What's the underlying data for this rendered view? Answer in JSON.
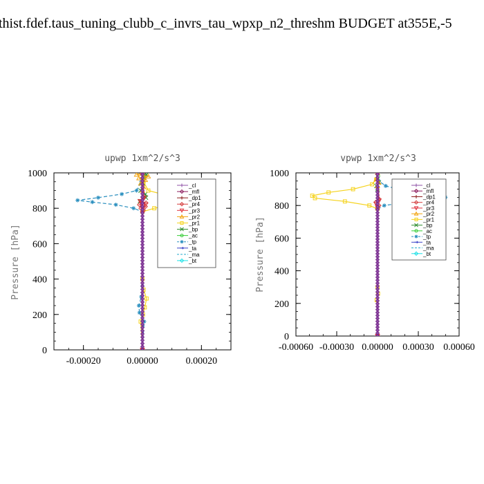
{
  "page_title": "thist.fdef.taus_tuning_clubb_c_invrs_tau_wpxp_n2_threshm  BUDGET at355E,-5",
  "chart_data": [
    {
      "type": "line",
      "title": "upwp   1xm^2/s^3",
      "ylabel": "Pressure [hPa]",
      "xlabel": "",
      "xlim": [
        -0.0003,
        0.0003
      ],
      "ylim": [
        1000,
        0
      ],
      "xticks": [
        -0.0002,
        0.0,
        0.0002
      ],
      "xtick_labels": [
        "-0.00020",
        "0.00000",
        "0.00020"
      ],
      "yticks": [
        0,
        200,
        400,
        600,
        800,
        1000
      ],
      "ytick_labels": [
        "0",
        "200",
        "400",
        "600",
        "800",
        "1000"
      ],
      "legend_position": "top-right",
      "series": [
        {
          "name": "_cl",
          "color": "#8c4fa6",
          "marker": "+",
          "x": [
            0,
            0
          ],
          "y": [
            0,
            1000
          ]
        },
        {
          "name": "_mfl",
          "color": "#8b1a5c",
          "marker": "diamond",
          "x": [
            0,
            0
          ],
          "y": [
            0,
            1000
          ]
        },
        {
          "name": "_dp1",
          "color": "#8b1a1a",
          "marker": "+",
          "x": [
            0,
            0
          ],
          "y": [
            0,
            1000
          ]
        },
        {
          "name": "_pr4",
          "color": "#d43a3a",
          "marker": "diamond",
          "x": [
            0,
            0,
            3e-06,
            -5e-06,
            1e-05,
            -1e-05,
            1.2e-05,
            -4e-06,
            2e-06,
            0
          ],
          "y": [
            0,
            780,
            790,
            800,
            810,
            820,
            830,
            840,
            860,
            1000
          ]
        },
        {
          "name": "_pr3",
          "color": "#e0303c",
          "marker": "triangle-down",
          "x": [
            0,
            0,
            1e-05,
            -8e-06,
            6e-06,
            0
          ],
          "y": [
            0,
            800,
            820,
            840,
            860,
            1000
          ]
        },
        {
          "name": "_pr2",
          "color": "#f2a20c",
          "marker": "triangle",
          "x": [
            0,
            0,
            4e-06,
            -6e-06,
            1e-05,
            -1.2e-05,
            2e-05,
            -2e-05,
            0
          ],
          "y": [
            0,
            900,
            920,
            940,
            960,
            970,
            980,
            990,
            1000
          ]
        },
        {
          "name": "_pr1",
          "color": "#f5d21a",
          "marker": "square",
          "x": [
            0,
            -6e-06,
            2e-06,
            8e-06,
            1.4e-05,
            4e-06,
            0,
            0,
            4e-05,
            0.00014,
            0.00021,
            9e-05,
            2e-05,
            4e-06,
            0
          ],
          "y": [
            0,
            160,
            200,
            240,
            290,
            340,
            400,
            780,
            800,
            830,
            845,
            870,
            900,
            950,
            1000
          ]
        },
        {
          "name": "_bp",
          "color": "#2d8b2d",
          "marker": "x",
          "x": [
            0,
            0,
            -8e-06,
            1.2e-05,
            1e-05,
            -6e-06,
            2e-06,
            1.4e-05,
            4e-06,
            0
          ],
          "y": [
            0,
            820,
            840,
            860,
            880,
            900,
            940,
            990,
            995,
            1000
          ]
        },
        {
          "name": "_ac",
          "color": "#33cc33",
          "marker": "circle",
          "x": [
            0,
            0,
            6e-06,
            2e-06,
            0
          ],
          "y": [
            0,
            950,
            970,
            990,
            1000
          ]
        },
        {
          "name": "_tp",
          "color": "#2a8fbf",
          "marker": "asterisk",
          "x": [
            0,
            6e-06,
            -1e-05,
            -1.2e-05,
            -4e-06,
            0,
            0,
            -3e-05,
            -9e-05,
            -0.00017,
            -0.00022,
            -0.00015,
            -7e-05,
            -2e-05,
            -4e-06,
            0
          ],
          "y": [
            0,
            160,
            210,
            250,
            300,
            360,
            780,
            800,
            820,
            835,
            845,
            860,
            880,
            900,
            950,
            1000
          ]
        },
        {
          "name": "_ta",
          "color": "#3b44c8",
          "marker": "arrow",
          "x": [
            0,
            0
          ],
          "y": [
            0,
            1000
          ]
        },
        {
          "name": "_ma",
          "color": "#23aacc",
          "marker": "none",
          "x": [
            0,
            0
          ],
          "y": [
            0,
            1000
          ]
        },
        {
          "name": "_bt",
          "color": "#18e0e6",
          "marker": "diamond",
          "x": [
            0,
            0
          ],
          "y": [
            0,
            1000
          ]
        }
      ]
    },
    {
      "type": "line",
      "title": "vpwp   1xm^2/s^3",
      "ylabel": "Pressure [hPa]",
      "xlabel": "",
      "xlim": [
        -0.0006,
        0.0006
      ],
      "ylim": [
        1000,
        0
      ],
      "xticks": [
        -0.0006,
        -0.0003,
        0.0,
        0.0003,
        0.0006
      ],
      "xtick_labels": [
        "-0.00060",
        "-0.00030",
        "0.00000",
        "0.00030",
        "0.00060"
      ],
      "yticks": [
        0,
        200,
        400,
        600,
        800,
        1000
      ],
      "ytick_labels": [
        "0",
        "200",
        "400",
        "600",
        "800",
        "1000"
      ],
      "legend_position": "top-right",
      "series": [
        {
          "name": "_cl",
          "color": "#8c4fa6",
          "marker": "+",
          "x": [
            0,
            0
          ],
          "y": [
            0,
            1000
          ]
        },
        {
          "name": "_mfl",
          "color": "#8b1a5c",
          "marker": "diamond",
          "x": [
            0,
            0
          ],
          "y": [
            0,
            1000
          ]
        },
        {
          "name": "_dp1",
          "color": "#8b1a1a",
          "marker": "+",
          "x": [
            0,
            0
          ],
          "y": [
            0,
            1000
          ]
        },
        {
          "name": "_pr4",
          "color": "#d43a3a",
          "marker": "diamond",
          "x": [
            0,
            0,
            1e-05,
            -1.2e-05,
            1e-05,
            0
          ],
          "y": [
            0,
            780,
            800,
            820,
            840,
            1000
          ]
        },
        {
          "name": "_pr3",
          "color": "#e0303c",
          "marker": "triangle-down",
          "x": [
            0,
            0,
            -1e-05,
            1.2e-05,
            0
          ],
          "y": [
            0,
            790,
            810,
            830,
            1000
          ]
        },
        {
          "name": "_pr2",
          "color": "#f2a20c",
          "marker": "triangle",
          "x": [
            0,
            0,
            1e-05,
            -1e-05,
            0
          ],
          "y": [
            0,
            920,
            940,
            960,
            1000
          ]
        },
        {
          "name": "_pr1",
          "color": "#f5d21a",
          "marker": "square",
          "x": [
            0,
            -6e-06,
            4e-06,
            0,
            0,
            -6e-05,
            -0.00024,
            -0.00046,
            -0.00048,
            -0.00036,
            -0.00018,
            -4e-05,
            -1e-05,
            0
          ],
          "y": [
            0,
            220,
            260,
            300,
            780,
            800,
            825,
            845,
            860,
            880,
            900,
            930,
            960,
            1000
          ]
        },
        {
          "name": "_bp",
          "color": "#2d8b2d",
          "marker": "x",
          "x": [
            0,
            0,
            -8e-06,
            1e-05,
            0
          ],
          "y": [
            0,
            900,
            920,
            940,
            1000
          ]
        },
        {
          "name": "_ac",
          "color": "#33cc33",
          "marker": "circle",
          "x": [
            0,
            0,
            4e-06,
            0
          ],
          "y": [
            0,
            960,
            980,
            1000
          ]
        },
        {
          "name": "_tp",
          "color": "#2a8fbf",
          "marker": "asterisk",
          "x": [
            0,
            0,
            5e-05,
            0.00026,
            0.00046,
            0.0005,
            0.00038,
            0.0002,
            6e-05,
            1e-05,
            0
          ],
          "y": [
            0,
            780,
            800,
            825,
            840,
            850,
            865,
            890,
            920,
            950,
            1000
          ]
        },
        {
          "name": "_ta",
          "color": "#3b44c8",
          "marker": "arrow",
          "x": [
            0,
            0
          ],
          "y": [
            0,
            1000
          ]
        },
        {
          "name": "_ma",
          "color": "#23aacc",
          "marker": "none",
          "x": [
            0,
            0
          ],
          "y": [
            0,
            1000
          ]
        },
        {
          "name": "_bt",
          "color": "#18e0e6",
          "marker": "diamond",
          "x": [
            0,
            0
          ],
          "y": [
            0,
            1000
          ]
        }
      ]
    }
  ]
}
